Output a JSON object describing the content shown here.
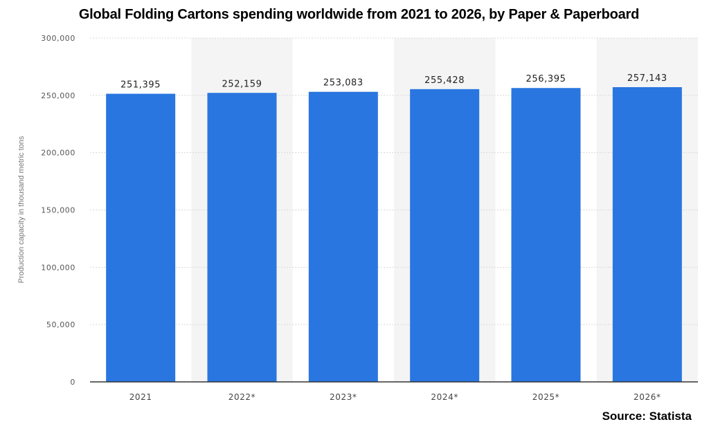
{
  "chart_data": {
    "type": "bar",
    "title": "Global Folding Cartons spending worldwide from 2021 to 2026, by Paper & Paperboard",
    "xlabel": "",
    "ylabel": "Production capacity in thousand metric tons",
    "categories": [
      "2021",
      "2022*",
      "2023*",
      "2024*",
      "2025*",
      "2026*"
    ],
    "values": [
      251395,
      252159,
      253083,
      255428,
      256395,
      257143
    ],
    "value_labels": [
      "251,395",
      "252,159",
      "253,083",
      "255,428",
      "256,395",
      "257,143"
    ],
    "ylim": [
      0,
      300000
    ],
    "yticks": [
      0,
      50000,
      100000,
      150000,
      200000,
      250000,
      300000
    ],
    "ytick_labels": [
      "0",
      "50,000",
      "100,000",
      "150,000",
      "200,000",
      "250,000",
      "300,000"
    ],
    "grid": true,
    "bar_color": "#2976e0",
    "band_color": "#f4f4f4"
  },
  "source": "Source: Statista"
}
